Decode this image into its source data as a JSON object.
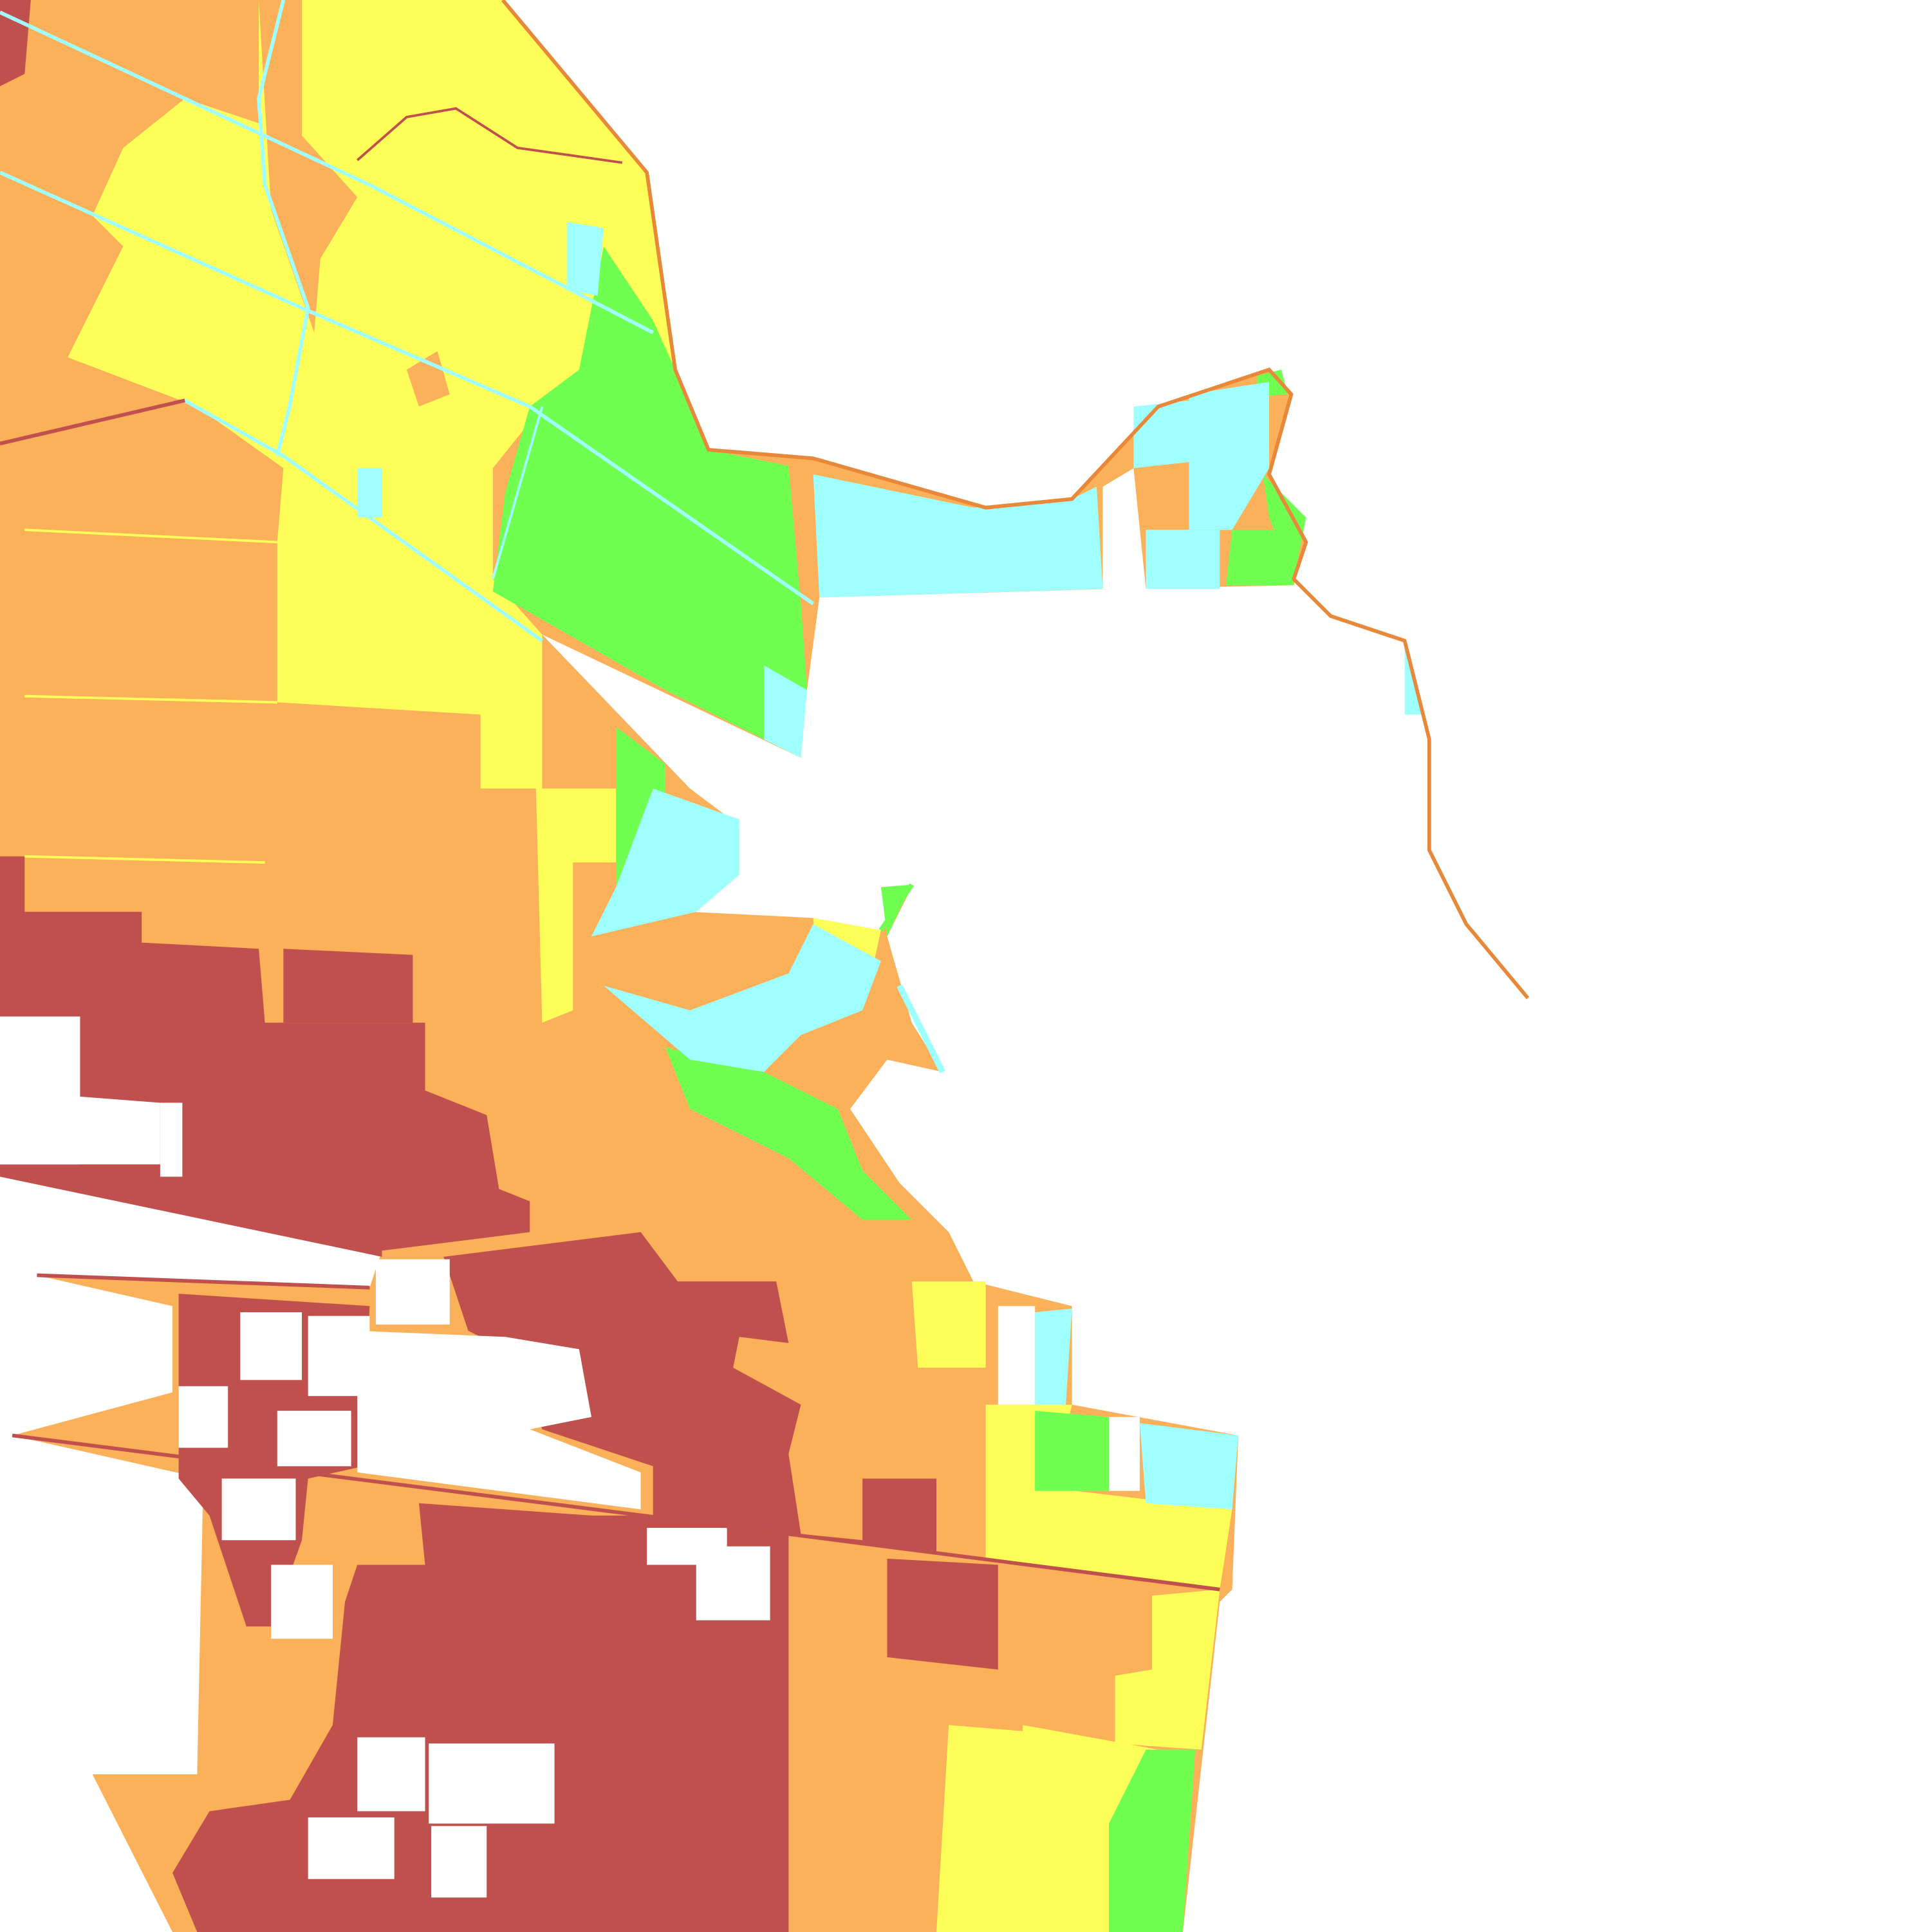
{
  "map": {
    "type": "classified-raster",
    "background": "#ffffff",
    "palette": {
      "class_1": "#c0504d",
      "class_2": "#fbb05a",
      "class_3": "#ffff5a",
      "class_4": "#70ff50",
      "class_5": "#a0ffff",
      "nodata": "#ffffff",
      "levee": "#e8883a",
      "road": "#a0ffff"
    }
  }
}
